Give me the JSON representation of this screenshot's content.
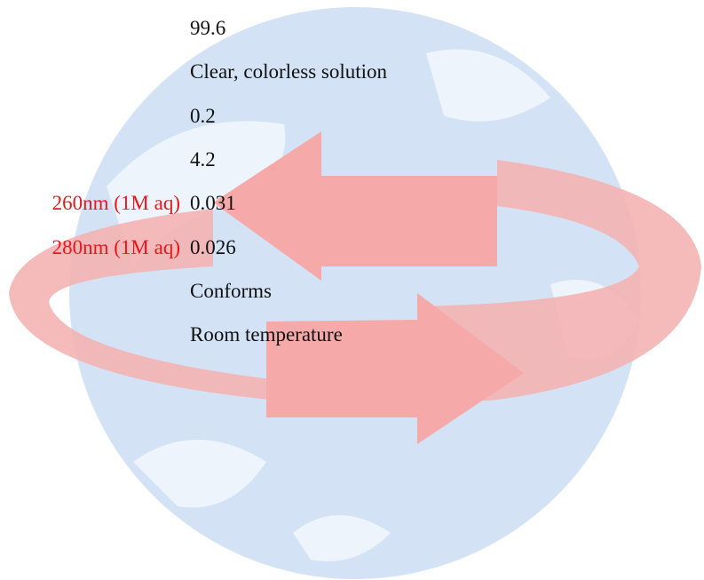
{
  "table": {
    "rows": [
      {
        "value": "99.6"
      },
      {
        "value": "Clear, colorless solution"
      },
      {
        "value": "0.2"
      },
      {
        "value": "4.2"
      },
      {
        "label": "260nm (1M aq)",
        "value": "0.031"
      },
      {
        "label": "280nm (1M aq)",
        "value": "0.026"
      },
      {
        "value": "Conforms"
      },
      {
        "value": "Room temperature"
      }
    ]
  }
}
